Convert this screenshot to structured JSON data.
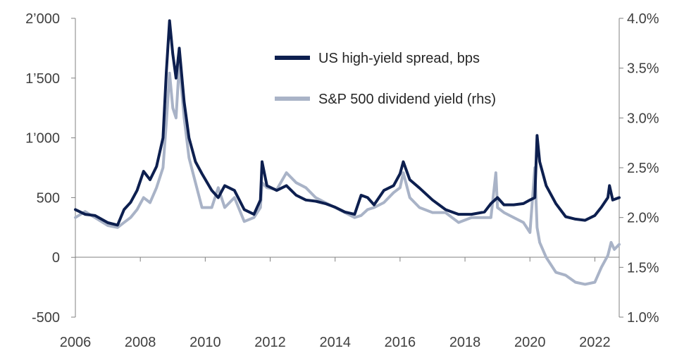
{
  "chart_data": {
    "type": "line",
    "title": "",
    "xlabel": "",
    "ylabel": "",
    "xlim": [
      2006,
      2022.75
    ],
    "x_ticks": [
      2006,
      2008,
      2010,
      2012,
      2014,
      2016,
      2018,
      2020,
      2022
    ],
    "x_tick_labels": [
      "2006",
      "2008",
      "2010",
      "2012",
      "2014",
      "2016",
      "2018",
      "2020",
      "2022"
    ],
    "ylim_left": [
      -500,
      2000
    ],
    "y_left_ticks": [
      -500,
      0,
      500,
      1000,
      1500,
      2000
    ],
    "y_left_tick_labels": [
      "-500",
      "0",
      "500",
      "1’000",
      "1’500",
      "2’000"
    ],
    "ylim_right": [
      1.0,
      4.0
    ],
    "y_right_ticks": [
      1.0,
      1.5,
      2.0,
      2.5,
      3.0,
      3.5,
      4.0
    ],
    "y_right_tick_labels": [
      "1.0%",
      "1.5%",
      "2.0%",
      "2.5%",
      "3.0%",
      "3.5%",
      "4.0%"
    ],
    "legend_position": "top-center",
    "series": [
      {
        "name": "US high-yield spread, bps",
        "axis": "left",
        "color": "#0d1f4f",
        "x": [
          2006.0,
          2006.3,
          2006.6,
          2007.0,
          2007.3,
          2007.5,
          2007.7,
          2007.9,
          2008.1,
          2008.3,
          2008.5,
          2008.7,
          2008.8,
          2008.9,
          2009.0,
          2009.1,
          2009.2,
          2009.35,
          2009.5,
          2009.7,
          2009.9,
          2010.2,
          2010.4,
          2010.6,
          2010.9,
          2011.2,
          2011.5,
          2011.7,
          2011.75,
          2011.9,
          2012.2,
          2012.5,
          2012.8,
          2013.1,
          2013.4,
          2013.7,
          2014.0,
          2014.3,
          2014.6,
          2014.8,
          2015.0,
          2015.2,
          2015.5,
          2015.8,
          2016.0,
          2016.1,
          2016.3,
          2016.6,
          2017.0,
          2017.4,
          2017.8,
          2018.2,
          2018.6,
          2018.8,
          2019.0,
          2019.2,
          2019.5,
          2019.8,
          2020.0,
          2020.15,
          2020.22,
          2020.3,
          2020.5,
          2020.8,
          2021.1,
          2021.4,
          2021.7,
          2022.0,
          2022.2,
          2022.4,
          2022.45,
          2022.55,
          2022.75
        ],
        "values": [
          400,
          360,
          350,
          290,
          270,
          400,
          460,
          560,
          720,
          650,
          760,
          1000,
          1550,
          1980,
          1700,
          1500,
          1750,
          1300,
          1000,
          800,
          700,
          560,
          500,
          600,
          560,
          400,
          360,
          480,
          800,
          600,
          560,
          600,
          520,
          480,
          470,
          450,
          420,
          380,
          360,
          520,
          500,
          440,
          560,
          600,
          700,
          800,
          650,
          580,
          480,
          400,
          360,
          360,
          380,
          450,
          500,
          440,
          440,
          450,
          480,
          500,
          1020,
          800,
          600,
          450,
          340,
          320,
          310,
          350,
          420,
          500,
          600,
          480,
          500
        ]
      },
      {
        "name": "S&P 500 dividend yield (rhs)",
        "axis": "right",
        "color": "#a9b3c7",
        "x": [
          2006.0,
          2006.3,
          2006.6,
          2007.0,
          2007.3,
          2007.5,
          2007.7,
          2007.9,
          2008.1,
          2008.3,
          2008.5,
          2008.7,
          2008.8,
          2008.9,
          2009.0,
          2009.1,
          2009.2,
          2009.35,
          2009.5,
          2009.7,
          2009.9,
          2010.2,
          2010.4,
          2010.6,
          2010.9,
          2011.2,
          2011.5,
          2011.7,
          2011.75,
          2011.9,
          2012.2,
          2012.5,
          2012.8,
          2013.1,
          2013.4,
          2013.7,
          2014.0,
          2014.3,
          2014.6,
          2014.8,
          2015.0,
          2015.2,
          2015.5,
          2015.8,
          2016.0,
          2016.1,
          2016.3,
          2016.6,
          2017.0,
          2017.4,
          2017.8,
          2018.2,
          2018.6,
          2018.8,
          2018.95,
          2019.0,
          2019.2,
          2019.5,
          2019.8,
          2020.0,
          2020.15,
          2020.22,
          2020.3,
          2020.5,
          2020.8,
          2021.1,
          2021.4,
          2021.7,
          2022.0,
          2022.2,
          2022.4,
          2022.5,
          2022.6,
          2022.75
        ],
        "values": [
          2.0,
          2.06,
          2.0,
          1.92,
          1.9,
          1.95,
          2.0,
          2.08,
          2.2,
          2.15,
          2.3,
          2.5,
          2.95,
          3.45,
          3.1,
          3.0,
          3.55,
          3.0,
          2.6,
          2.35,
          2.1,
          2.1,
          2.3,
          2.1,
          2.2,
          1.96,
          2.0,
          2.1,
          2.35,
          2.3,
          2.28,
          2.45,
          2.35,
          2.3,
          2.2,
          2.15,
          2.1,
          2.05,
          2.0,
          2.02,
          2.08,
          2.1,
          2.15,
          2.25,
          2.3,
          2.45,
          2.2,
          2.1,
          2.05,
          2.05,
          1.95,
          2.0,
          2.0,
          2.0,
          2.45,
          2.1,
          2.05,
          2.0,
          1.95,
          1.85,
          2.5,
          1.9,
          1.75,
          1.6,
          1.45,
          1.42,
          1.35,
          1.33,
          1.35,
          1.5,
          1.62,
          1.75,
          1.68,
          1.73
        ]
      }
    ]
  }
}
